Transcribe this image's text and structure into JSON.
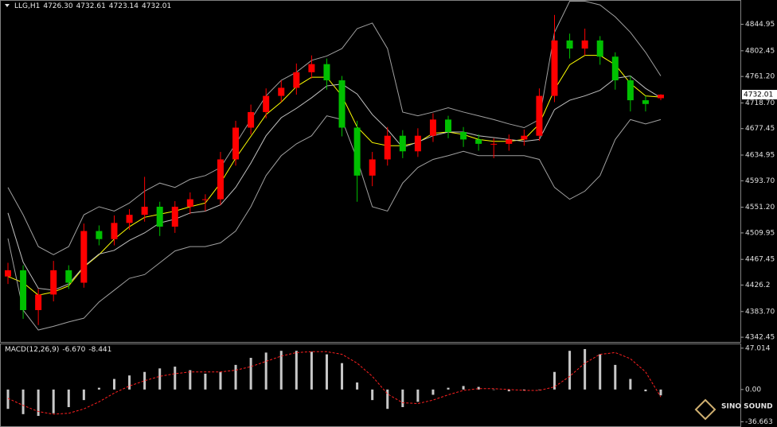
{
  "symbol": "LLG,H1",
  "ohlc_text": [
    "4726.30",
    "4732.61",
    "4723.14",
    "4732.01"
  ],
  "watermark": "SINO SOUND",
  "chart_data": [
    {
      "type": "candlestick",
      "open": [
        4440,
        4450,
        4386,
        4411,
        4450,
        4430,
        4513,
        4500,
        4526,
        4539,
        4552,
        4520,
        4552,
        4564,
        4564,
        4628,
        4679,
        4704,
        4730,
        4743,
        4768,
        4781,
        4755,
        4679,
        4602,
        4628,
        4666,
        4641,
        4666,
        4692,
        4672,
        4660,
        4653,
        4653,
        4660,
        4666,
        4730,
        4819,
        4806,
        4819,
        4793,
        4755,
        4723,
        4726.3
      ],
      "high": [
        4462,
        4458,
        4420,
        4465,
        4458,
        4525,
        4522,
        4538,
        4548,
        4600,
        4560,
        4561,
        4575,
        4572,
        4640,
        4690,
        4716,
        4742,
        4755,
        4782,
        4795,
        4790,
        4762,
        4690,
        4640,
        4680,
        4675,
        4678,
        4702,
        4698,
        4680,
        4668,
        4662,
        4668,
        4676,
        4742,
        4860,
        4830,
        4838,
        4826,
        4800,
        4762,
        4730,
        4732.61
      ],
      "low": [
        4428,
        4372,
        4362,
        4400,
        4420,
        4422,
        4490,
        4490,
        4515,
        4528,
        4505,
        4510,
        4540,
        4545,
        4555,
        4618,
        4668,
        4694,
        4720,
        4732,
        4758,
        4740,
        4665,
        4560,
        4585,
        4618,
        4630,
        4632,
        4656,
        4662,
        4648,
        4642,
        4630,
        4642,
        4650,
        4658,
        4720,
        4790,
        4795,
        4780,
        4740,
        4705,
        4705,
        4723.14
      ],
      "close": [
        4450,
        4386,
        4411,
        4450,
        4430,
        4513,
        4500,
        4526,
        4539,
        4552,
        4520,
        4552,
        4564,
        4564,
        4628,
        4679,
        4704,
        4730,
        4743,
        4768,
        4781,
        4755,
        4679,
        4602,
        4628,
        4666,
        4641,
        4666,
        4692,
        4672,
        4660,
        4653,
        4653,
        4660,
        4666,
        4730,
        4819,
        4806,
        4819,
        4793,
        4755,
        4723,
        4717,
        4732.01
      ],
      "up_color": "#ff0000",
      "down_color": "#00c000",
      "lines": [
        {
          "color": "#ffff00",
          "values": [
            4440,
            4430,
            4410,
            4415,
            4425,
            4455,
            4475,
            4500,
            4520,
            4535,
            4540,
            4545,
            4552,
            4558,
            4590,
            4630,
            4665,
            4700,
            4720,
            4745,
            4760,
            4760,
            4730,
            4680,
            4655,
            4650,
            4650,
            4655,
            4670,
            4672,
            4668,
            4660,
            4657,
            4657,
            4660,
            4685,
            4740,
            4780,
            4795,
            4795,
            4780,
            4750,
            4730,
            4728
          ]
        },
        {
          "color": "#c0c0c0",
          "values": [
            4542,
            4463,
            4421,
            4418,
            4428,
            4456,
            4476,
            4482,
            4498,
            4510,
            4526,
            4532,
            4542,
            4545,
            4555,
            4583,
            4622,
            4666,
            4695,
            4710,
            4727,
            4746,
            4749,
            4733,
            4700,
            4676,
            4647,
            4656,
            4666,
            4672,
            4672,
            4666,
            4663,
            4660,
            4657,
            4660,
            4708,
            4723,
            4730,
            4739,
            4758,
            4762,
            4742,
            4727
          ]
        },
        {
          "color": "#a0a0a0",
          "values": [
            4583,
            4539,
            4488,
            4475,
            4488,
            4539,
            4552,
            4545,
            4558,
            4577,
            4590,
            4583,
            4596,
            4602,
            4615,
            4653,
            4692,
            4730,
            4755,
            4768,
            4787,
            4794,
            4806,
            4838,
            4847,
            4806,
            4704,
            4698,
            4704,
            4711,
            4704,
            4698,
            4692,
            4685,
            4679,
            4692,
            4832,
            4882,
            4882,
            4876,
            4857,
            4832,
            4800,
            4762
          ]
        },
        {
          "color": "#a0a0a0",
          "values": [
            4501,
            4386,
            4354,
            4360,
            4367,
            4373,
            4399,
            4418,
            4437,
            4443,
            4462,
            4481,
            4488,
            4488,
            4494,
            4513,
            4552,
            4602,
            4634,
            4653,
            4666,
            4698,
            4692,
            4628,
            4552,
            4545,
            4590,
            4615,
            4628,
            4634,
            4641,
            4634,
            4634,
            4634,
            4634,
            4628,
            4583,
            4564,
            4577,
            4602,
            4660,
            4692,
            4685,
            4692
          ]
        }
      ],
      "ylim": [
        4334.9,
        4882.7
      ],
      "yticks": [
        4342.45,
        {
          "value": 4383.7,
          "label": "4383.70"
        },
        4426.2,
        4467.45,
        4509.95,
        {
          "value": 4551.2,
          "label": "4551.20"
        },
        {
          "value": 4593.7,
          "label": "4593.70"
        },
        4634.95,
        4677.45,
        {
          "value": 4718.7,
          "label": "4718.70"
        },
        {
          "value": 4761.2,
          "label": "4761.20"
        },
        4802.45,
        4844.95
      ],
      "last_price": 4732.01
    },
    {
      "type": "macd",
      "title": "MACD(12,26,9)",
      "legend_values": [
        "-6.670",
        "-8.441"
      ],
      "histogram": {
        "color": "#c8c8c8",
        "values": [
          -22,
          -28,
          -30,
          -27,
          -20,
          -12,
          2,
          12,
          16,
          20,
          24,
          26,
          22,
          18,
          20,
          28,
          36,
          42,
          44,
          44,
          43,
          40,
          30,
          8,
          -12,
          -22,
          -20,
          -14,
          -6,
          2,
          4,
          3,
          0,
          -2,
          -1,
          0,
          20,
          44,
          46,
          40,
          28,
          12,
          -2,
          -6.67
        ]
      },
      "signal": {
        "color": "#ff2020",
        "values": [
          -10,
          -18,
          -25,
          -28,
          -27,
          -22,
          -14,
          -4,
          4,
          10,
          15,
          18,
          20,
          20,
          20,
          22,
          26,
          32,
          38,
          42,
          43,
          43,
          40,
          30,
          15,
          -5,
          -15,
          -16,
          -12,
          -6,
          -1,
          1,
          1,
          0,
          -1,
          -1,
          3,
          15,
          30,
          40,
          42,
          35,
          20,
          -8.441
        ]
      },
      "ylim": [
        -41.7,
        51.4
      ],
      "yticks": [
        47.014,
        {
          "value": 0,
          "label": "0.00"
        },
        -36.663
      ]
    }
  ]
}
